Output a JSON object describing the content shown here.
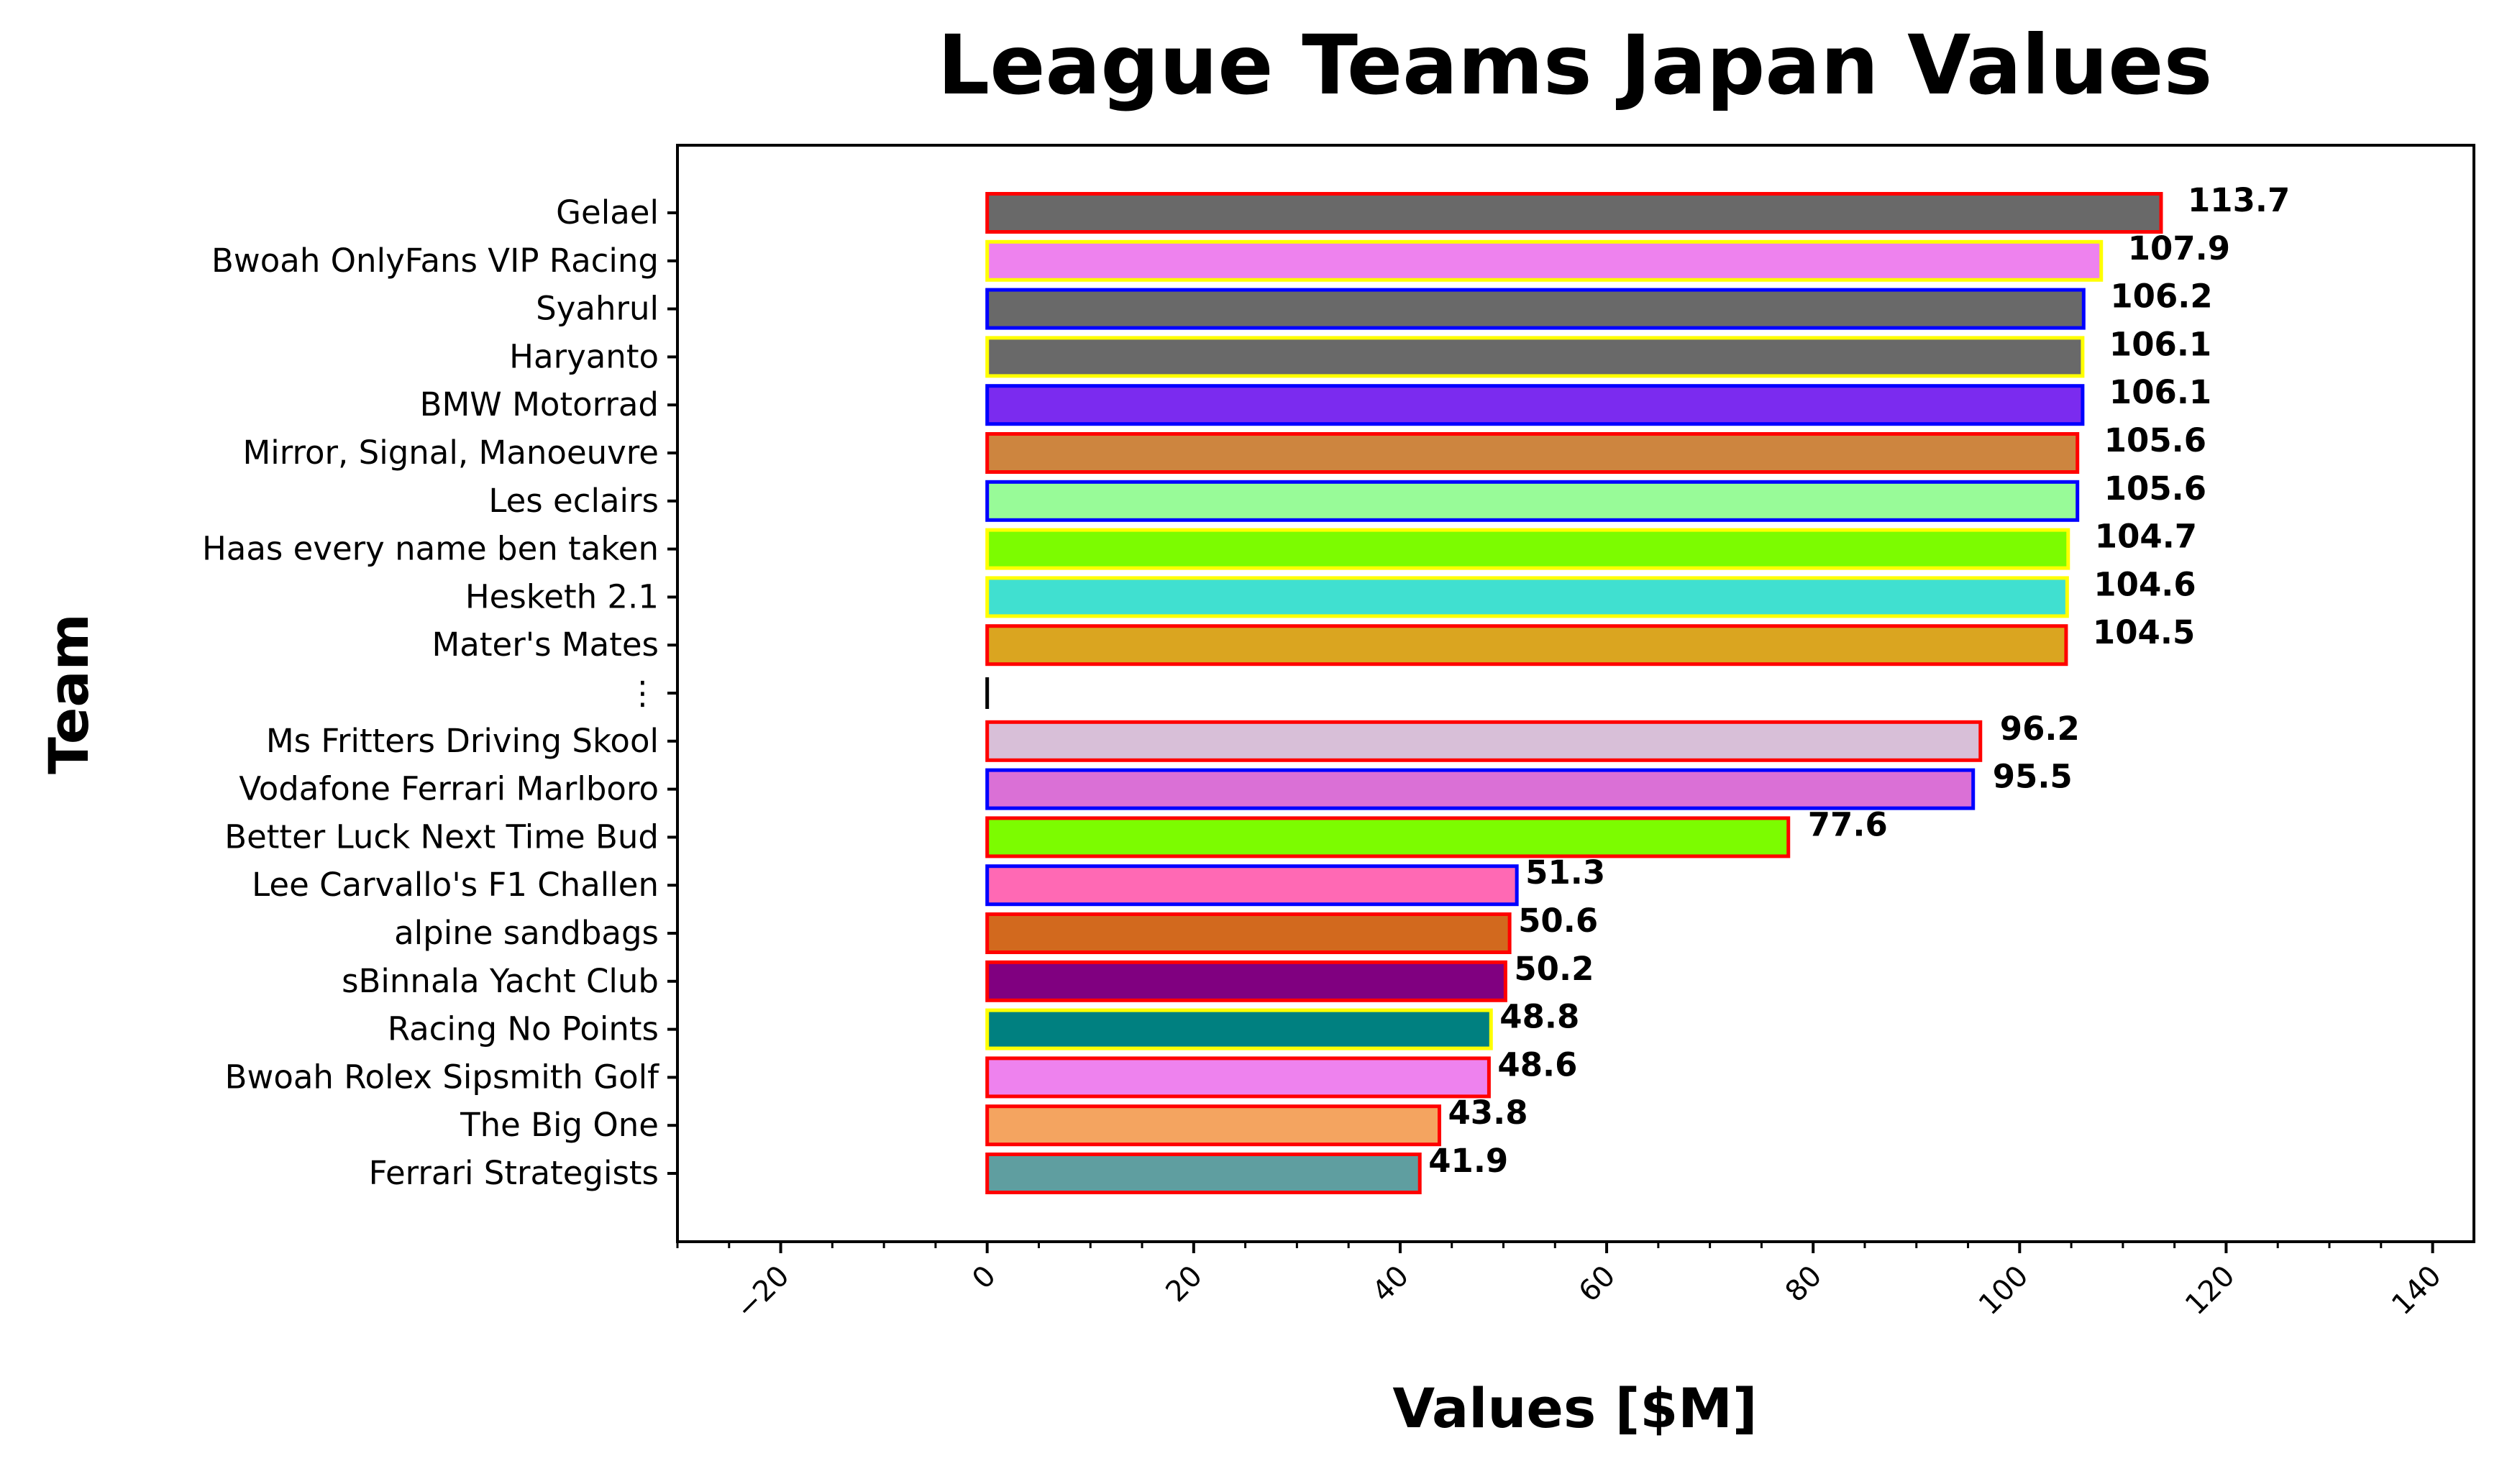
{
  "chart_data": {
    "type": "bar",
    "orientation": "horizontal",
    "title": "League Teams Japan Values",
    "xlabel": "Values [$M]",
    "ylabel": "Team",
    "xlim": [
      -30,
      144
    ],
    "xticks": [
      -20,
      0,
      20,
      40,
      60,
      80,
      100,
      120,
      140
    ],
    "xtick_labels": [
      "−20",
      "0",
      "20",
      "40",
      "60",
      "80",
      "100",
      "120",
      "140"
    ],
    "grid": false,
    "legend": "none",
    "gap_label": "⋮",
    "bars": [
      {
        "team": "Gelael",
        "value": 113.7,
        "label": "113.7",
        "fill": "#696969",
        "edge": "#ff0000"
      },
      {
        "team": "Bwoah OnlyFans VIP Racing",
        "value": 107.9,
        "label": "107.9",
        "fill": "#ee82ee",
        "edge": "#ffff00"
      },
      {
        "team": "Syahrul",
        "value": 106.2,
        "label": "106.2",
        "fill": "#696969",
        "edge": "#0000ff"
      },
      {
        "team": "Haryanto",
        "value": 106.1,
        "label": "106.1",
        "fill": "#696969",
        "edge": "#ffff00"
      },
      {
        "team": "BMW Motorrad",
        "value": 106.1,
        "label": "106.1",
        "fill": "#7b2bef",
        "edge": "#0000ff"
      },
      {
        "team": "Mirror, Signal, Manoeuvre",
        "value": 105.6,
        "label": "105.6",
        "fill": "#cd853f",
        "edge": "#ff0000"
      },
      {
        "team": "Les eclairs",
        "value": 105.6,
        "label": "105.6",
        "fill": "#98fb98",
        "edge": "#0000ff"
      },
      {
        "team": "Haas every name ben taken",
        "value": 104.7,
        "label": "104.7",
        "fill": "#7cfc00",
        "edge": "#ffff00"
      },
      {
        "team": "Hesketh 2.1",
        "value": 104.6,
        "label": "104.6",
        "fill": "#40e0d0",
        "edge": "#ffff00"
      },
      {
        "team": "Mater's Mates",
        "value": 104.5,
        "label": "104.5",
        "fill": "#daa520",
        "edge": "#ff0000"
      },
      {
        "team": "Ms Fritters Driving Skool",
        "value": 96.2,
        "label": "96.2",
        "fill": "#d8bfd8",
        "edge": "#ff0000"
      },
      {
        "team": "Vodafone Ferrari Marlboro",
        "value": 95.5,
        "label": "95.5",
        "fill": "#da70d6",
        "edge": "#0000ff"
      },
      {
        "team": "Better Luck Next Time Bud",
        "value": 77.6,
        "label": "77.6",
        "fill": "#7cfc00",
        "edge": "#ff0000"
      },
      {
        "team": "Lee Carvallo's F1 Challen",
        "value": 51.3,
        "label": "51.3",
        "fill": "#ff69b4",
        "edge": "#0000ff"
      },
      {
        "team": "alpine sandbags",
        "value": 50.6,
        "label": "50.6",
        "fill": "#d2691e",
        "edge": "#ff0000"
      },
      {
        "team": "sBinnala Yacht Club",
        "value": 50.2,
        "label": "50.2",
        "fill": "#800080",
        "edge": "#ff0000"
      },
      {
        "team": "Racing No Points",
        "value": 48.8,
        "label": "48.8",
        "fill": "#008080",
        "edge": "#ffff00"
      },
      {
        "team": "Bwoah Rolex Sipsmith Golf",
        "value": 48.6,
        "label": "48.6",
        "fill": "#ee82ee",
        "edge": "#ff0000"
      },
      {
        "team": "The Big One",
        "value": 43.8,
        "label": "43.8",
        "fill": "#f4a460",
        "edge": "#ff0000"
      },
      {
        "team": "Ferrari Strategists",
        "value": 41.9,
        "label": "41.9",
        "fill": "#5f9ea0",
        "edge": "#ff0000"
      }
    ],
    "gap_after_index": 9
  }
}
